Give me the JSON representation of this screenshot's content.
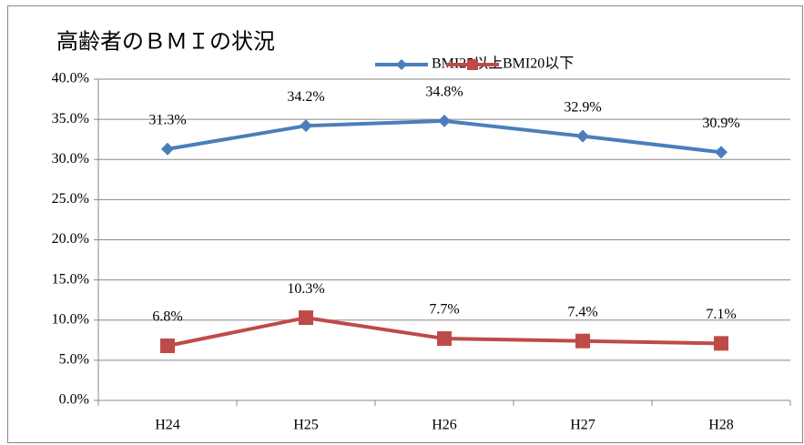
{
  "chart_data": {
    "type": "line",
    "title": "高齢者のＢＭＩの状況",
    "categories": [
      "H24",
      "H25",
      "H26",
      "H27",
      "H28"
    ],
    "series": [
      {
        "name": "BMI25以上",
        "color": "#4a7ebb",
        "marker": "diamond",
        "values": [
          31.3,
          34.2,
          34.8,
          32.9,
          30.9
        ],
        "value_labels": [
          "31.3%",
          "34.2%",
          "34.8%",
          "32.9%",
          "30.9%"
        ]
      },
      {
        "name": "BMI20以下",
        "color": "#be4b48",
        "marker": "square",
        "values": [
          6.8,
          10.3,
          7.7,
          7.4,
          7.1
        ],
        "value_labels": [
          "6.8%",
          "10.3%",
          "7.7%",
          "7.4%",
          "7.1%"
        ]
      }
    ],
    "ylim": [
      0,
      40
    ],
    "yticks": [
      {
        "value": 0,
        "label": "0.0%"
      },
      {
        "value": 5,
        "label": "5.0%"
      },
      {
        "value": 10,
        "label": "10.0%"
      },
      {
        "value": 15,
        "label": "15.0%"
      },
      {
        "value": 20,
        "label": "20.0%"
      },
      {
        "value": 25,
        "label": "25.0%"
      },
      {
        "value": 30,
        "label": "30.0%"
      },
      {
        "value": 35,
        "label": "35.0%"
      },
      {
        "value": 40,
        "label": "40.0%"
      }
    ],
    "grid": true,
    "legend": "top"
  }
}
